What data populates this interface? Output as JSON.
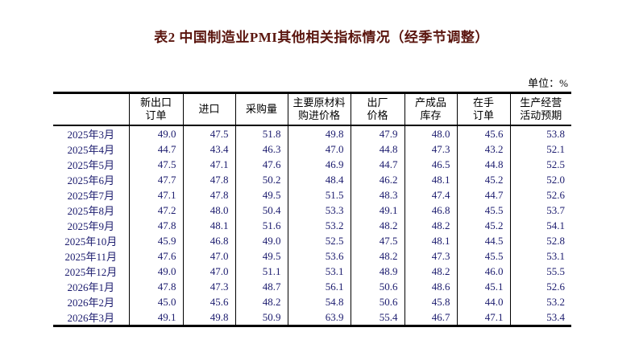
{
  "page": {
    "title": "表2 中国制造业PMI其他相关指标情况（经季节调整）",
    "unit_label": "单位：%"
  },
  "colors": {
    "title_text": "#5a150e",
    "header_text": "#000000",
    "value_text": "#1b1b6e",
    "border": "#000000"
  },
  "table": {
    "columns": [
      [
        ""
      ],
      [
        "新出口",
        "订单"
      ],
      [
        "进口"
      ],
      [
        "采购量"
      ],
      [
        "主要原材料",
        "购进价格"
      ],
      [
        "出厂",
        "价格"
      ],
      [
        "产成品",
        "库存"
      ],
      [
        "在手",
        "订单"
      ],
      [
        "生产经营",
        "活动预期"
      ]
    ],
    "rows": [
      {
        "label": "2025年3月",
        "values": [
          "49.0",
          "47.5",
          "51.8",
          "49.8",
          "47.9",
          "48.0",
          "45.6",
          "53.8"
        ]
      },
      {
        "label": "2025年4月",
        "values": [
          "44.7",
          "43.4",
          "46.3",
          "47.0",
          "44.8",
          "47.3",
          "43.2",
          "52.1"
        ]
      },
      {
        "label": "2025年5月",
        "values": [
          "47.5",
          "47.1",
          "47.6",
          "46.9",
          "44.7",
          "46.5",
          "44.8",
          "52.5"
        ]
      },
      {
        "label": "2025年6月",
        "values": [
          "47.7",
          "47.8",
          "50.2",
          "48.4",
          "46.2",
          "48.1",
          "45.2",
          "52.0"
        ]
      },
      {
        "label": "2025年7月",
        "values": [
          "47.1",
          "47.8",
          "49.5",
          "51.5",
          "48.3",
          "47.4",
          "44.7",
          "52.6"
        ]
      },
      {
        "label": "2025年8月",
        "values": [
          "47.2",
          "48.0",
          "50.4",
          "53.3",
          "49.1",
          "46.8",
          "45.5",
          "53.7"
        ]
      },
      {
        "label": "2025年9月",
        "values": [
          "47.8",
          "48.1",
          "51.6",
          "53.2",
          "48.2",
          "48.2",
          "45.2",
          "54.1"
        ]
      },
      {
        "label": "2025年10月",
        "values": [
          "45.9",
          "46.8",
          "49.0",
          "52.5",
          "47.5",
          "48.1",
          "44.5",
          "52.8"
        ]
      },
      {
        "label": "2025年11月",
        "values": [
          "47.6",
          "47.0",
          "49.5",
          "53.6",
          "48.2",
          "47.3",
          "45.5",
          "53.1"
        ]
      },
      {
        "label": "2025年12月",
        "values": [
          "49.0",
          "47.0",
          "51.1",
          "53.1",
          "48.9",
          "48.2",
          "46.0",
          "55.5"
        ]
      },
      {
        "label": "2026年1月",
        "values": [
          "47.8",
          "47.3",
          "48.7",
          "56.1",
          "50.6",
          "48.6",
          "45.1",
          "52.6"
        ]
      },
      {
        "label": "2026年2月",
        "values": [
          "45.0",
          "45.6",
          "48.2",
          "54.8",
          "50.6",
          "45.8",
          "44.0",
          "53.2"
        ]
      },
      {
        "label": "2026年3月",
        "values": [
          "49.1",
          "49.8",
          "50.9",
          "63.9",
          "55.4",
          "46.7",
          "47.1",
          "53.4"
        ]
      }
    ]
  }
}
